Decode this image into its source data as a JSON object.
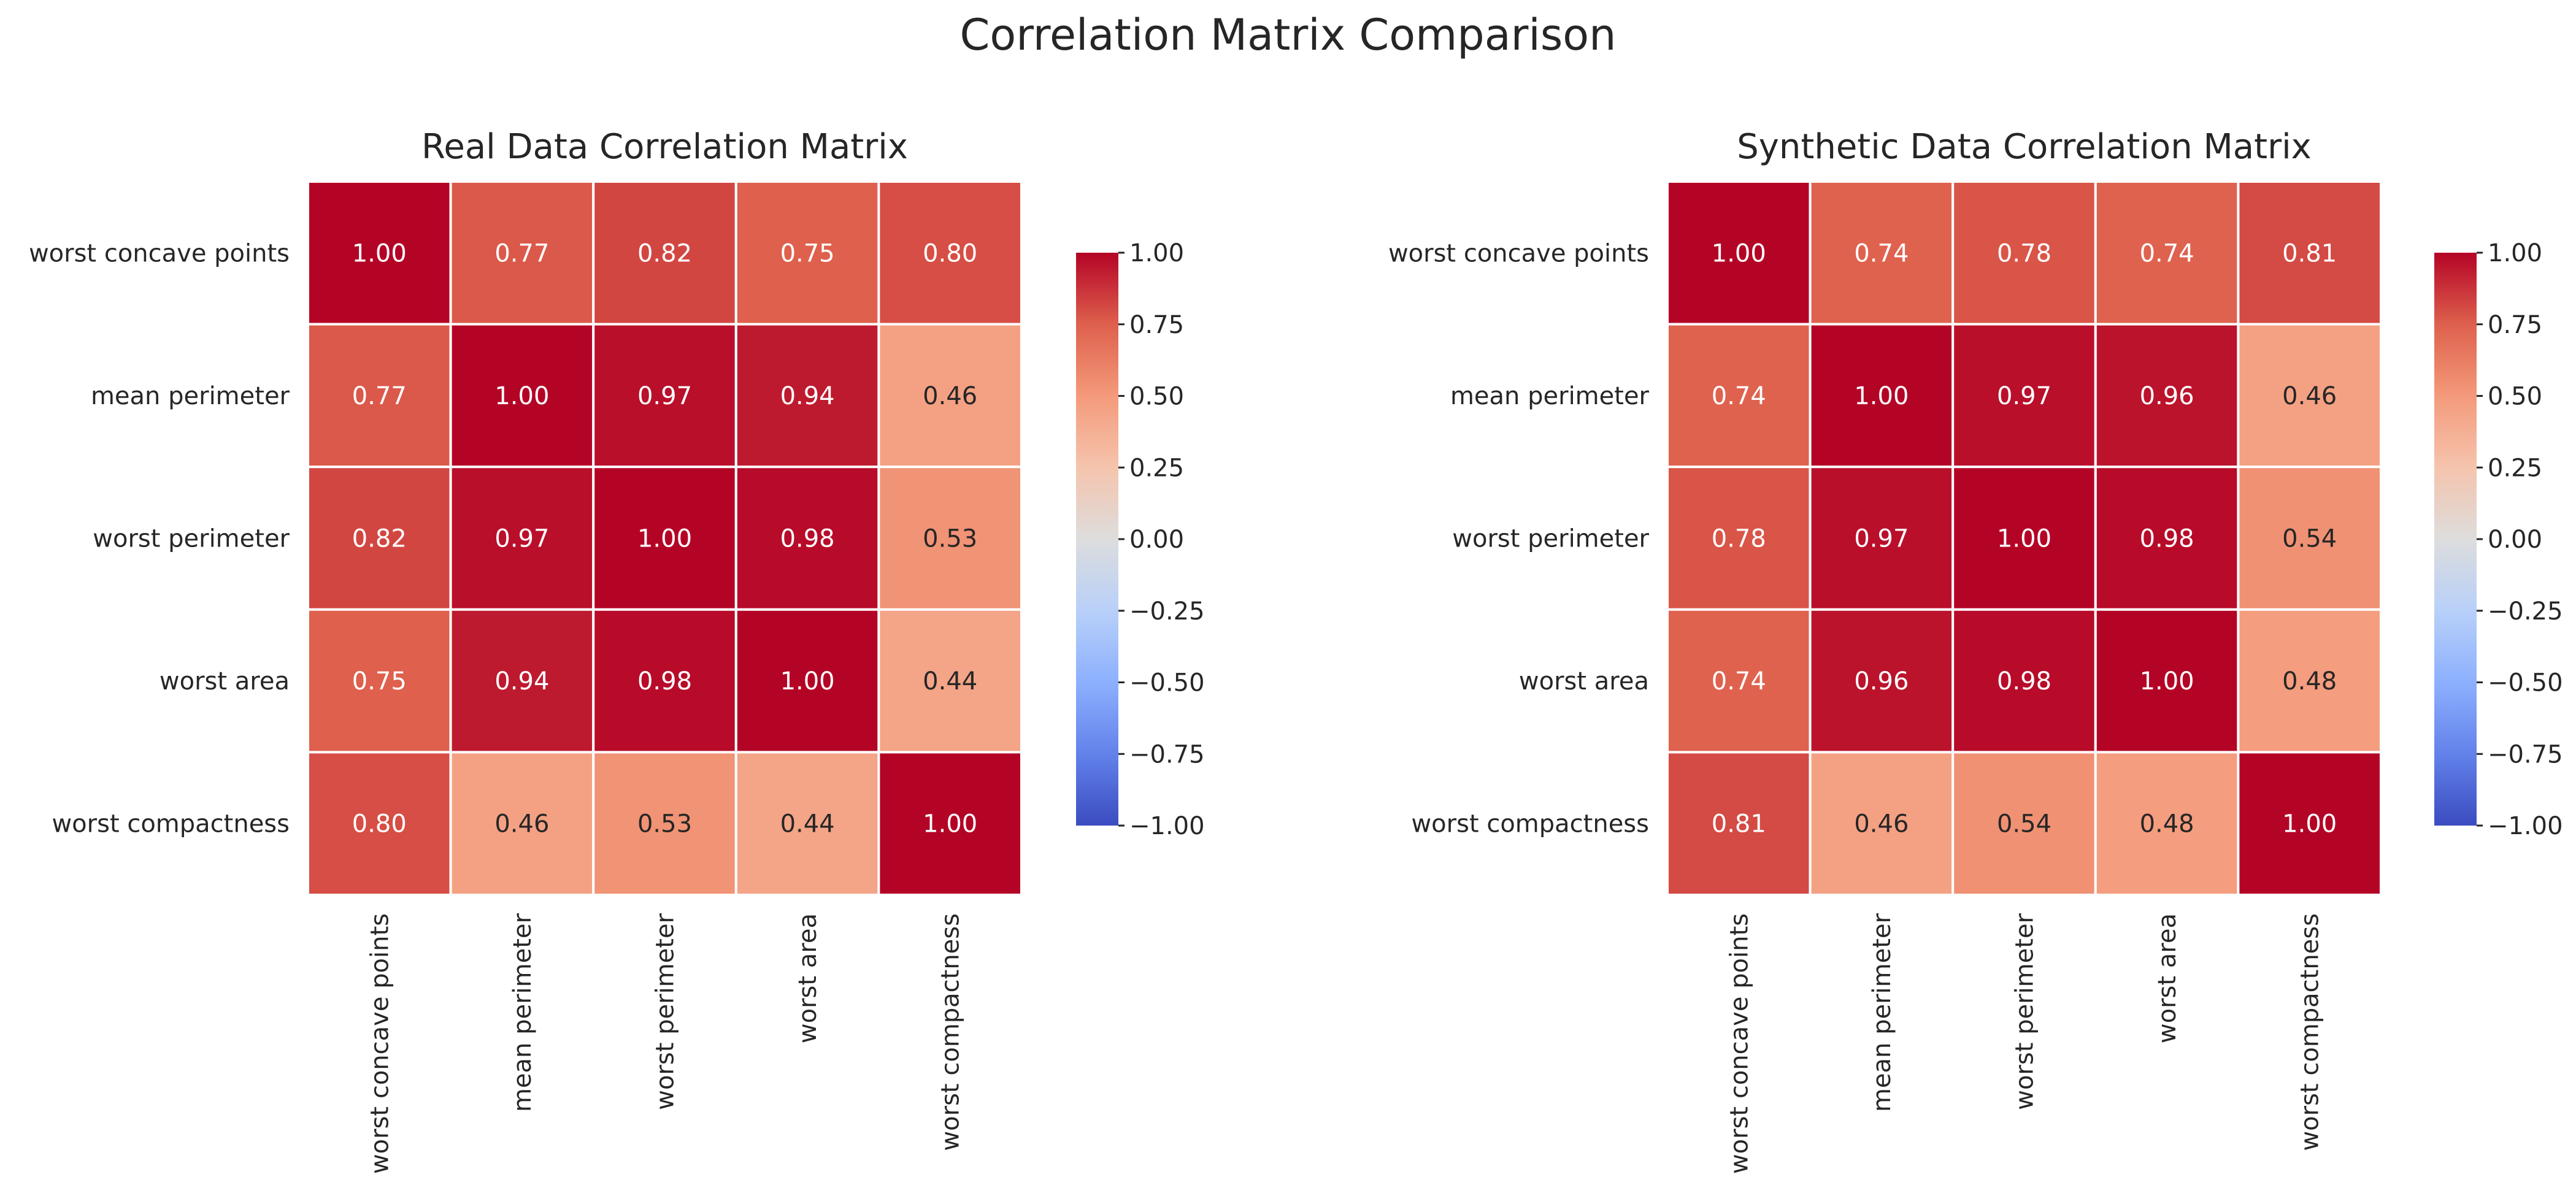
{
  "figure": {
    "suptitle": "Correlation Matrix Comparison",
    "colormap": "coolwarm"
  },
  "chart_data": [
    {
      "type": "heatmap",
      "title": "Real Data Correlation Matrix",
      "row_labels": [
        "worst concave points",
        "mean perimeter",
        "worst perimeter",
        "worst area",
        "worst compactness"
      ],
      "col_labels": [
        "worst concave points",
        "mean perimeter",
        "worst perimeter",
        "worst area",
        "worst compactness"
      ],
      "values": [
        [
          1.0,
          0.77,
          0.82,
          0.75,
          0.8
        ],
        [
          0.77,
          1.0,
          0.97,
          0.94,
          0.46
        ],
        [
          0.82,
          0.97,
          1.0,
          0.98,
          0.53
        ],
        [
          0.75,
          0.94,
          0.98,
          1.0,
          0.44
        ],
        [
          0.8,
          0.46,
          0.53,
          0.44,
          1.0
        ]
      ],
      "annotation_format": "0.00",
      "colorbar": {
        "range": [
          -1.0,
          1.0
        ],
        "ticks": [
          "1.00",
          "0.75",
          "0.50",
          "0.25",
          "0.00",
          "−0.25",
          "−0.50",
          "−0.75",
          "−1.00"
        ]
      }
    },
    {
      "type": "heatmap",
      "title": "Synthetic Data Correlation Matrix",
      "row_labels": [
        "worst concave points",
        "mean perimeter",
        "worst perimeter",
        "worst area",
        "worst compactness"
      ],
      "col_labels": [
        "worst concave points",
        "mean perimeter",
        "worst perimeter",
        "worst area",
        "worst compactness"
      ],
      "values": [
        [
          1.0,
          0.74,
          0.78,
          0.74,
          0.81
        ],
        [
          0.74,
          1.0,
          0.97,
          0.96,
          0.46
        ],
        [
          0.78,
          0.97,
          1.0,
          0.98,
          0.54
        ],
        [
          0.74,
          0.96,
          0.98,
          1.0,
          0.48
        ],
        [
          0.81,
          0.46,
          0.54,
          0.48,
          1.0
        ]
      ],
      "annotation_format": "0.00",
      "colorbar": {
        "range": [
          -1.0,
          1.0
        ],
        "ticks": [
          "1.00",
          "0.75",
          "0.50",
          "0.25",
          "0.00",
          "−0.25",
          "−0.50",
          "−0.75",
          "−1.00"
        ]
      }
    }
  ]
}
